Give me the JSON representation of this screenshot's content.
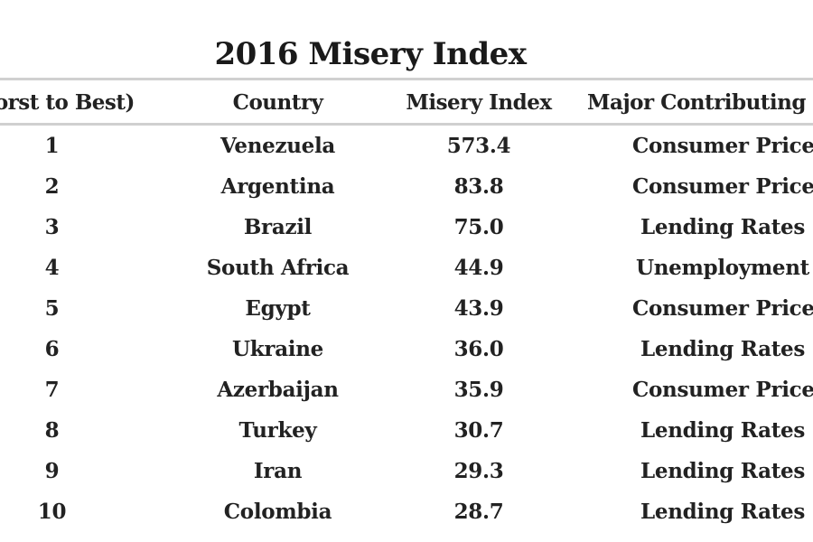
{
  "chart_data": {
    "type": "table",
    "title": "2016 Misery Index",
    "columns": [
      "(Worst to Best)",
      "Country",
      "Misery Index",
      "Major Contributing Fa"
    ],
    "rows": [
      {
        "rank": "1",
        "country": "Venezuela",
        "index": "573.4",
        "factor": "Consumer Prices"
      },
      {
        "rank": "2",
        "country": "Argentina",
        "index": "83.8",
        "factor": "Consumer Prices"
      },
      {
        "rank": "3",
        "country": "Brazil",
        "index": "75.0",
        "factor": "Lending Rates"
      },
      {
        "rank": "4",
        "country": "South Africa",
        "index": "44.9",
        "factor": "Unemployment"
      },
      {
        "rank": "5",
        "country": "Egypt",
        "index": "43.9",
        "factor": "Consumer Prices"
      },
      {
        "rank": "6",
        "country": "Ukraine",
        "index": "36.0",
        "factor": "Lending Rates"
      },
      {
        "rank": "7",
        "country": "Azerbaijan",
        "index": "35.9",
        "factor": "Consumer Prices"
      },
      {
        "rank": "8",
        "country": "Turkey",
        "index": "30.7",
        "factor": "Lending Rates"
      },
      {
        "rank": "9",
        "country": "Iran",
        "index": "29.3",
        "factor": "Lending Rates"
      },
      {
        "rank": "10",
        "country": "Colombia",
        "index": "28.7",
        "factor": "Lending Rates"
      }
    ]
  }
}
